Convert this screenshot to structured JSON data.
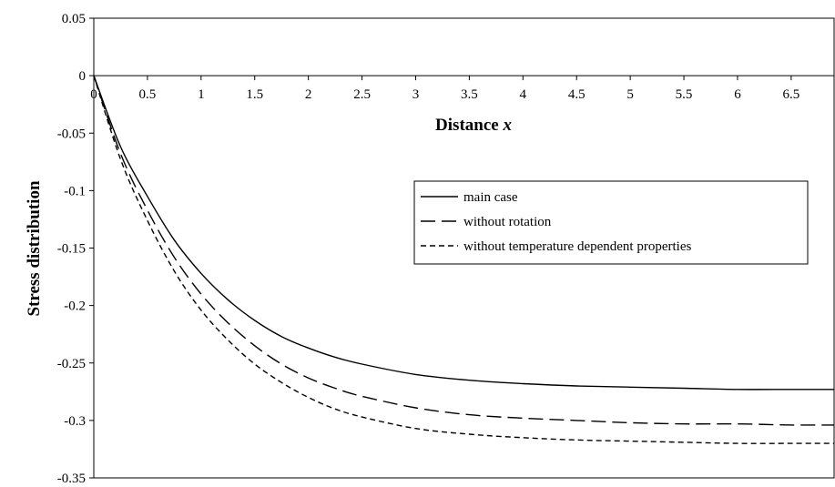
{
  "chart_data": {
    "type": "line",
    "title": "",
    "xlabel": "Distance",
    "xlabel_var": "x",
    "ylabel": "Stress distribution",
    "xlim": [
      0,
      6.9
    ],
    "ylim": [
      -0.35,
      0.05
    ],
    "x_ticks": [
      0,
      0.5,
      1,
      1.5,
      2,
      2.5,
      3,
      3.5,
      4,
      4.5,
      5,
      5.5,
      6,
      6.5
    ],
    "x_tick_labels": [
      "0",
      "0.5",
      "1",
      "1.5",
      "2",
      "2.5",
      "3",
      "3.5",
      "4",
      "4.5",
      "5",
      "5.5",
      "6",
      "6.5"
    ],
    "y_ticks": [
      0.05,
      0,
      -0.05,
      -0.1,
      -0.15,
      -0.2,
      -0.25,
      -0.3,
      -0.35
    ],
    "y_tick_labels": [
      "0.05",
      "0",
      "-0.05",
      "-0.1",
      "-0.15",
      "-0.2",
      "-0.25",
      "-0.3",
      "-0.35"
    ],
    "grid": false,
    "legend_position": "right-middle",
    "x": [
      0,
      0.25,
      0.5,
      0.75,
      1,
      1.25,
      1.5,
      1.75,
      2,
      2.25,
      2.5,
      3,
      3.5,
      4,
      4.5,
      5,
      5.5,
      6,
      6.5,
      6.9
    ],
    "series": [
      {
        "name": "main case",
        "line_style": "solid",
        "values": [
          0,
          -0.062,
          -0.105,
          -0.143,
          -0.172,
          -0.195,
          -0.213,
          -0.227,
          -0.237,
          -0.245,
          -0.251,
          -0.26,
          -0.265,
          -0.268,
          -0.27,
          -0.271,
          -0.272,
          -0.273,
          -0.273,
          -0.273
        ]
      },
      {
        "name": "without rotation",
        "line_style": "long-dash",
        "values": [
          0,
          -0.068,
          -0.117,
          -0.158,
          -0.19,
          -0.215,
          -0.235,
          -0.251,
          -0.263,
          -0.272,
          -0.279,
          -0.289,
          -0.295,
          -0.298,
          -0.3,
          -0.302,
          -0.303,
          -0.303,
          -0.304,
          -0.304
        ]
      },
      {
        "name": "without temperature dependent properties",
        "line_style": "short-dash",
        "values": [
          0,
          -0.073,
          -0.126,
          -0.17,
          -0.204,
          -0.23,
          -0.251,
          -0.267,
          -0.28,
          -0.29,
          -0.297,
          -0.307,
          -0.312,
          -0.315,
          -0.317,
          -0.318,
          -0.319,
          -0.32,
          -0.32,
          -0.32
        ]
      }
    ]
  }
}
